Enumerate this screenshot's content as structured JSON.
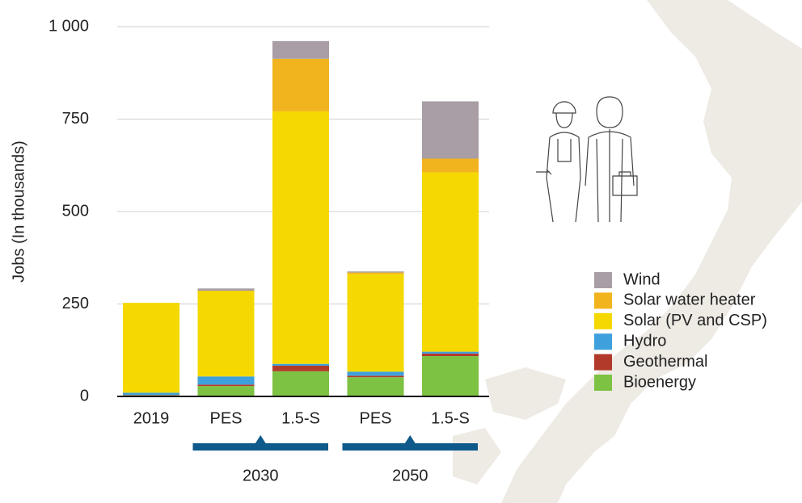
{
  "chart_data": {
    "type": "stacked_bar",
    "y_axis_label": "Jobs (In thousands)",
    "categories": [
      "2019",
      "PES",
      "1.5-S",
      "PES",
      "1.5-S"
    ],
    "groups": [
      "2030",
      "2050"
    ],
    "series": [
      {
        "name": "Bioenergy",
        "color": "#7dc242",
        "values": [
          3,
          28,
          68,
          52,
          109
        ]
      },
      {
        "name": "Geothermal",
        "color": "#b23a2a",
        "values": [
          1,
          4,
          15,
          4,
          7
        ]
      },
      {
        "name": "Hydro",
        "color": "#3ea0dc",
        "values": [
          6,
          22,
          5,
          11,
          5
        ]
      },
      {
        "name": "Solar (PV and CSP)",
        "color": "#f5d800",
        "values": [
          243,
          231,
          683,
          264,
          485
        ]
      },
      {
        "name": "Solar water heater",
        "color": "#f2b41e",
        "values": [
          0,
          1,
          142,
          4,
          37
        ]
      },
      {
        "name": "Wind",
        "color": "#a99ea5",
        "values": [
          0,
          6,
          48,
          3,
          155
        ]
      }
    ],
    "ylim": [
      0,
      1000
    ],
    "yticks": [
      0,
      250,
      500,
      750,
      {
        "value": 1000,
        "label": "1 000"
      }
    ],
    "grid": true
  }
}
